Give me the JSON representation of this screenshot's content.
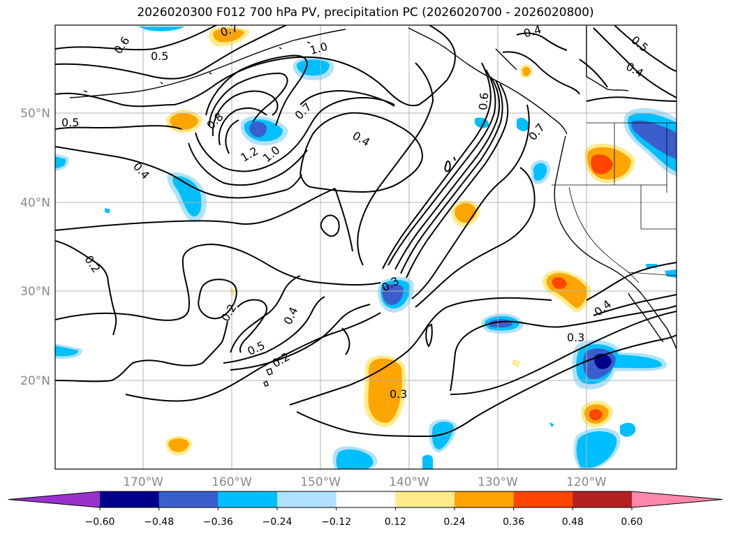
{
  "title": "2026020300 F012 700 hPa PV, precipitation PC (2026020700 - 2026020800)",
  "map": {
    "lat_labels": [
      "50°N",
      "40°N",
      "30°N",
      "20°N"
    ],
    "lon_labels": [
      "170°W",
      "160°W",
      "150°W",
      "140°W",
      "130°W",
      "120°W"
    ],
    "gridline_color": "#b0b0b0",
    "contour_color": "#000000"
  },
  "contour_labels": [
    "0.6",
    "0.5",
    "0.7",
    "1.0",
    "0.4",
    "0.5",
    "0.4",
    "0.5",
    "0.8",
    "0.7",
    "1.2",
    "1.0",
    "0.4",
    "0.6",
    "0.7",
    "0.4",
    "0.2",
    "0.2",
    "0.4",
    "0.5",
    "0.2",
    "0.3",
    "0.3",
    "0.4",
    "0.3"
  ],
  "colorbar": {
    "ticks": [
      "−0.60",
      "−0.48",
      "−0.36",
      "−0.24",
      "−0.12",
      "0.12",
      "0.24",
      "0.36",
      "0.48",
      "0.60"
    ],
    "colors": [
      "#9932CC",
      "#00008B",
      "#3A5FCD",
      "#00BFFF",
      "#B0E2FF",
      "#FFFFFF",
      "#FFEC8B",
      "#FFA500",
      "#FF4500",
      "#B22222",
      "#FF88AA"
    ]
  }
}
